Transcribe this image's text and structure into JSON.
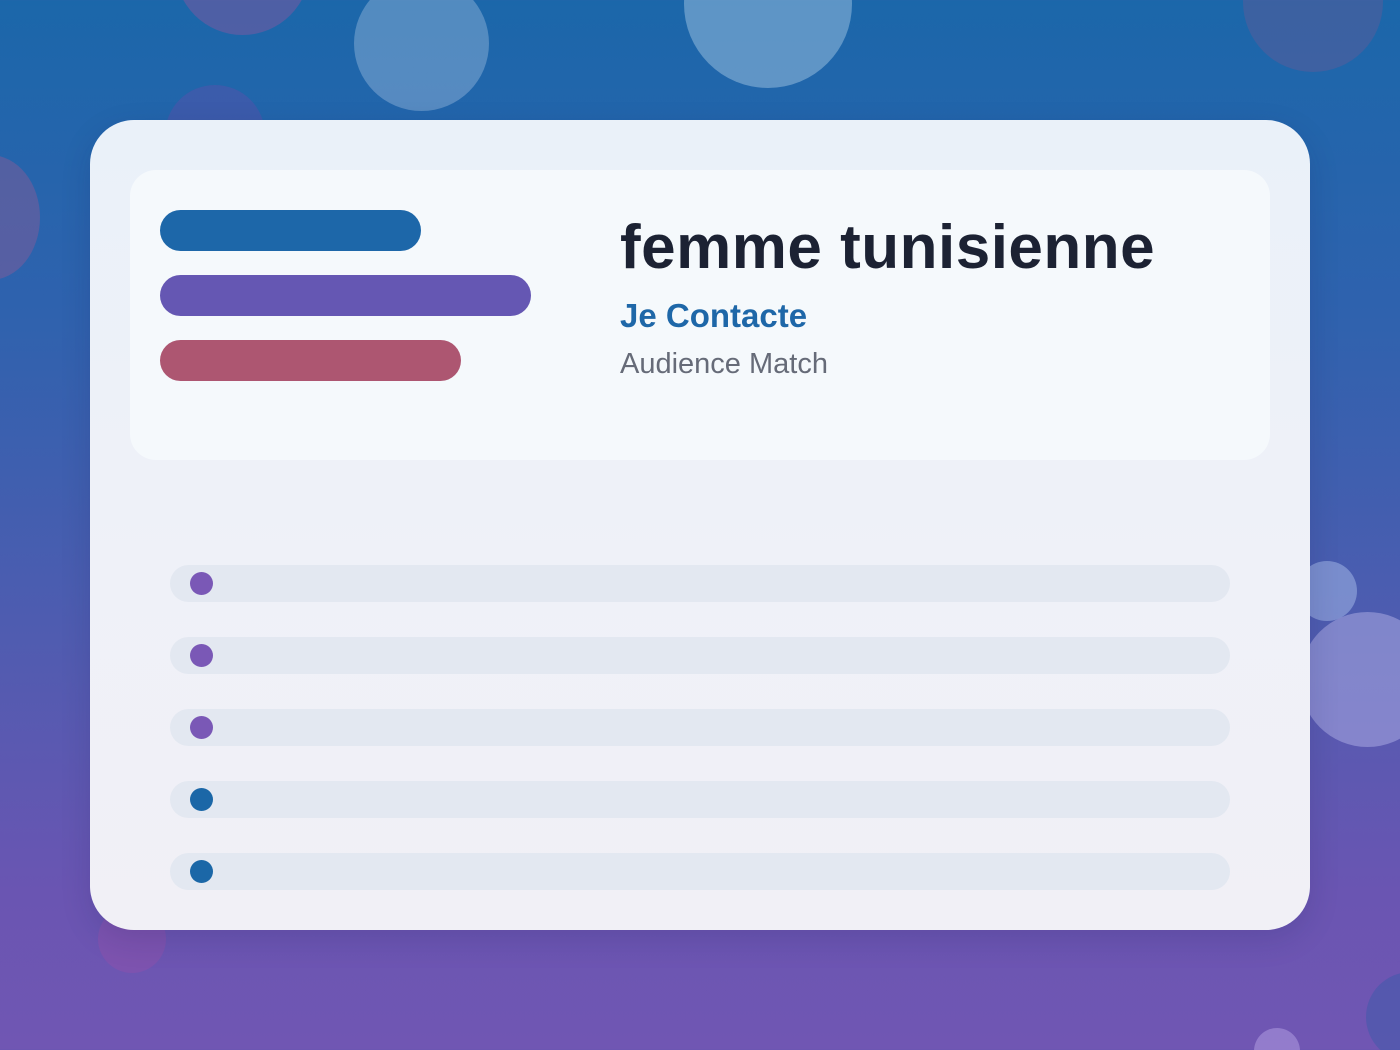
{
  "card": {
    "title": "femme tunisienne",
    "subtitle": "Je Contacte",
    "caption": "Audience Match",
    "bars": [
      {
        "color": "#1d67a9"
      },
      {
        "color": "#6557b3"
      },
      {
        "color": "#ad5671"
      }
    ],
    "rows": [
      {
        "dot_color": "#7a58b6"
      },
      {
        "dot_color": "#7a58b6"
      },
      {
        "dot_color": "#7a58b6"
      },
      {
        "dot_color": "#1b67a7"
      },
      {
        "dot_color": "#1b67a7"
      }
    ]
  },
  "colors": {
    "primary_blue": "#1d67a9",
    "primary_purple": "#6557b3",
    "accent_rose": "#ad5671",
    "title_text": "#1c2233",
    "caption_text": "#666b78"
  }
}
